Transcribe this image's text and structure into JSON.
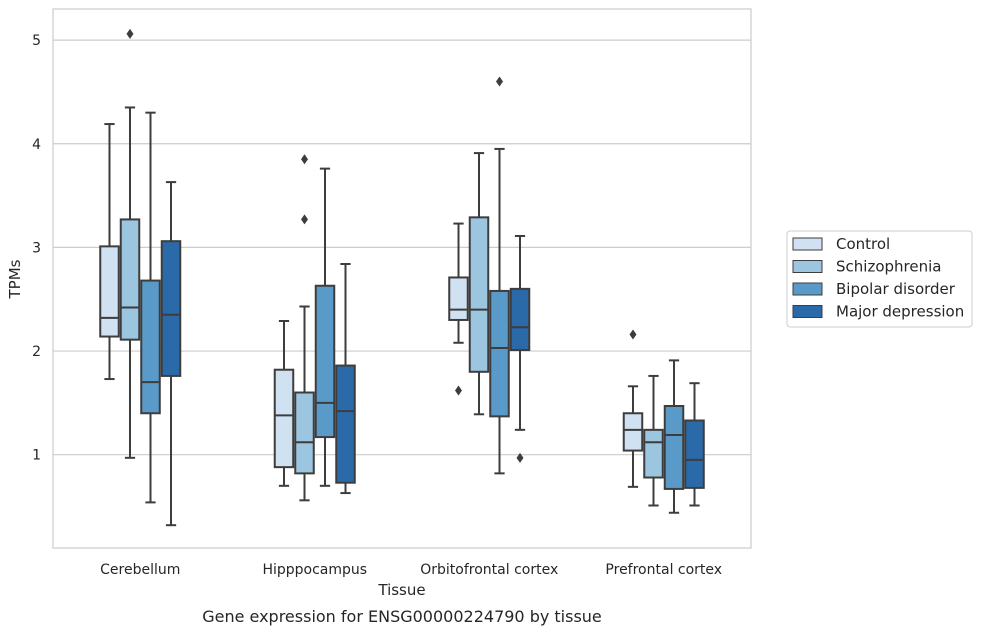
{
  "chart_data": {
    "type": "boxplot",
    "title": "Gene expression for ENSG00000224790 by tissue",
    "xlabel": "Tissue",
    "ylabel": "TPMs",
    "ylim": [
      0.1,
      5.3
    ],
    "yticks": [
      1,
      2,
      3,
      4,
      5
    ],
    "grid": true,
    "legend_position": "right",
    "categories": [
      "Cerebellum",
      "Hipppocampus",
      "Orbitofrontal cortex",
      "Prefrontal cortex"
    ],
    "series": [
      {
        "name": "Control",
        "color": "#d0e1f1",
        "boxes": [
          {
            "whisker_low": 1.73,
            "q1": 2.14,
            "median": 2.32,
            "q3": 3.01,
            "whisker_high": 4.19,
            "outliers": []
          },
          {
            "whisker_low": 0.7,
            "q1": 0.88,
            "median": 1.38,
            "q3": 1.82,
            "whisker_high": 2.29,
            "outliers": []
          },
          {
            "whisker_low": 2.08,
            "q1": 2.3,
            "median": 2.4,
            "q3": 2.71,
            "whisker_high": 3.23,
            "outliers": [
              1.62
            ]
          },
          {
            "whisker_low": 0.69,
            "q1": 1.04,
            "median": 1.24,
            "q3": 1.4,
            "whisker_high": 1.66,
            "outliers": [
              2.16
            ]
          }
        ]
      },
      {
        "name": "Schizophrenia",
        "color": "#9cc5df",
        "boxes": [
          {
            "whisker_low": 0.97,
            "q1": 2.11,
            "median": 2.42,
            "q3": 3.27,
            "whisker_high": 4.35,
            "outliers": [
              5.06
            ]
          },
          {
            "whisker_low": 0.56,
            "q1": 0.82,
            "median": 1.12,
            "q3": 1.6,
            "whisker_high": 2.43,
            "outliers": [
              3.27,
              3.85
            ]
          },
          {
            "whisker_low": 1.39,
            "q1": 1.8,
            "median": 2.4,
            "q3": 3.29,
            "whisker_high": 3.91,
            "outliers": []
          },
          {
            "whisker_low": 0.51,
            "q1": 0.78,
            "median": 1.12,
            "q3": 1.24,
            "whisker_high": 1.76,
            "outliers": []
          }
        ]
      },
      {
        "name": "Bipolar disorder",
        "color": "#5a9ac8",
        "boxes": [
          {
            "whisker_low": 0.54,
            "q1": 1.4,
            "median": 1.7,
            "q3": 2.68,
            "whisker_high": 4.3,
            "outliers": []
          },
          {
            "whisker_low": 0.7,
            "q1": 1.17,
            "median": 1.5,
            "q3": 2.63,
            "whisker_high": 3.76,
            "outliers": []
          },
          {
            "whisker_low": 0.82,
            "q1": 1.37,
            "median": 2.03,
            "q3": 2.58,
            "whisker_high": 3.95,
            "outliers": [
              4.6
            ]
          },
          {
            "whisker_low": 0.44,
            "q1": 0.67,
            "median": 1.19,
            "q3": 1.47,
            "whisker_high": 1.91,
            "outliers": []
          }
        ]
      },
      {
        "name": "Major depression",
        "color": "#2b6aa9",
        "boxes": [
          {
            "whisker_low": 0.32,
            "q1": 1.76,
            "median": 2.35,
            "q3": 3.06,
            "whisker_high": 3.63,
            "outliers": []
          },
          {
            "whisker_low": 0.63,
            "q1": 0.73,
            "median": 1.42,
            "q3": 1.86,
            "whisker_high": 2.84,
            "outliers": []
          },
          {
            "whisker_low": 1.24,
            "q1": 2.01,
            "median": 2.23,
            "q3": 2.6,
            "whisker_high": 3.11,
            "outliers": [
              0.97
            ]
          },
          {
            "whisker_low": 0.51,
            "q1": 0.68,
            "median": 0.95,
            "q3": 1.33,
            "whisker_high": 1.69,
            "outliers": []
          }
        ]
      }
    ]
  }
}
